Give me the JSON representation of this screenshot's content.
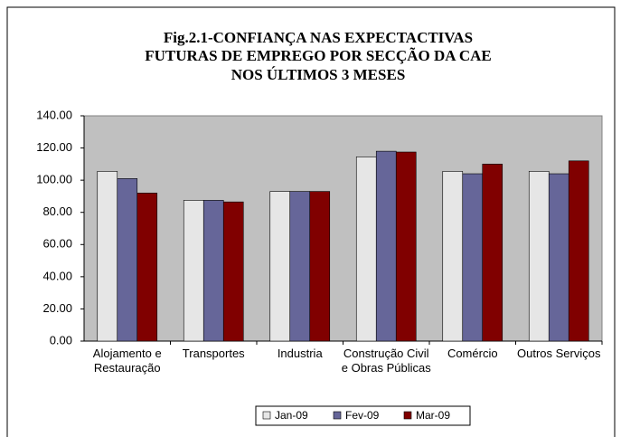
{
  "chart_data": {
    "type": "bar",
    "title": [
      "Fig.2.1-CONFIANÇA NAS EXPECTACTIVAS",
      "FUTURAS  DE EMPREGO POR SECÇÃO DA CAE",
      "NOS ÚLTIMOS 3 MESES"
    ],
    "categories": [
      "Alojamento e Restauração",
      "Transportes",
      "Industria",
      "Construção Civil e Obras Públicas",
      "Comércio",
      "Outros Serviços"
    ],
    "series": [
      {
        "name": "Jan-09",
        "color": "#e6e6e6",
        "values": [
          105.5,
          87.5,
          93,
          114.5,
          105.5,
          105.5
        ]
      },
      {
        "name": "Fev-09",
        "color": "#666699",
        "values": [
          101,
          87.5,
          93,
          118,
          104,
          104
        ]
      },
      {
        "name": "Mar-09",
        "color": "#800000",
        "values": [
          92,
          86.5,
          93,
          117.5,
          110,
          112
        ]
      }
    ],
    "ylim": [
      0,
      140
    ],
    "yticks": [
      {
        "value": 0,
        "label": "0.00"
      },
      {
        "value": 20,
        "label": "20.00"
      },
      {
        "value": 40,
        "label": "40.00"
      },
      {
        "value": 60,
        "label": "60.00"
      },
      {
        "value": 80,
        "label": "80.00"
      },
      {
        "value": 100,
        "label": "100.00"
      },
      {
        "value": 120,
        "label": "120.00"
      },
      {
        "value": 140,
        "label": "140.00"
      }
    ],
    "grid": false,
    "legend": "bottom",
    "plot_background": "#c0c0c0"
  }
}
